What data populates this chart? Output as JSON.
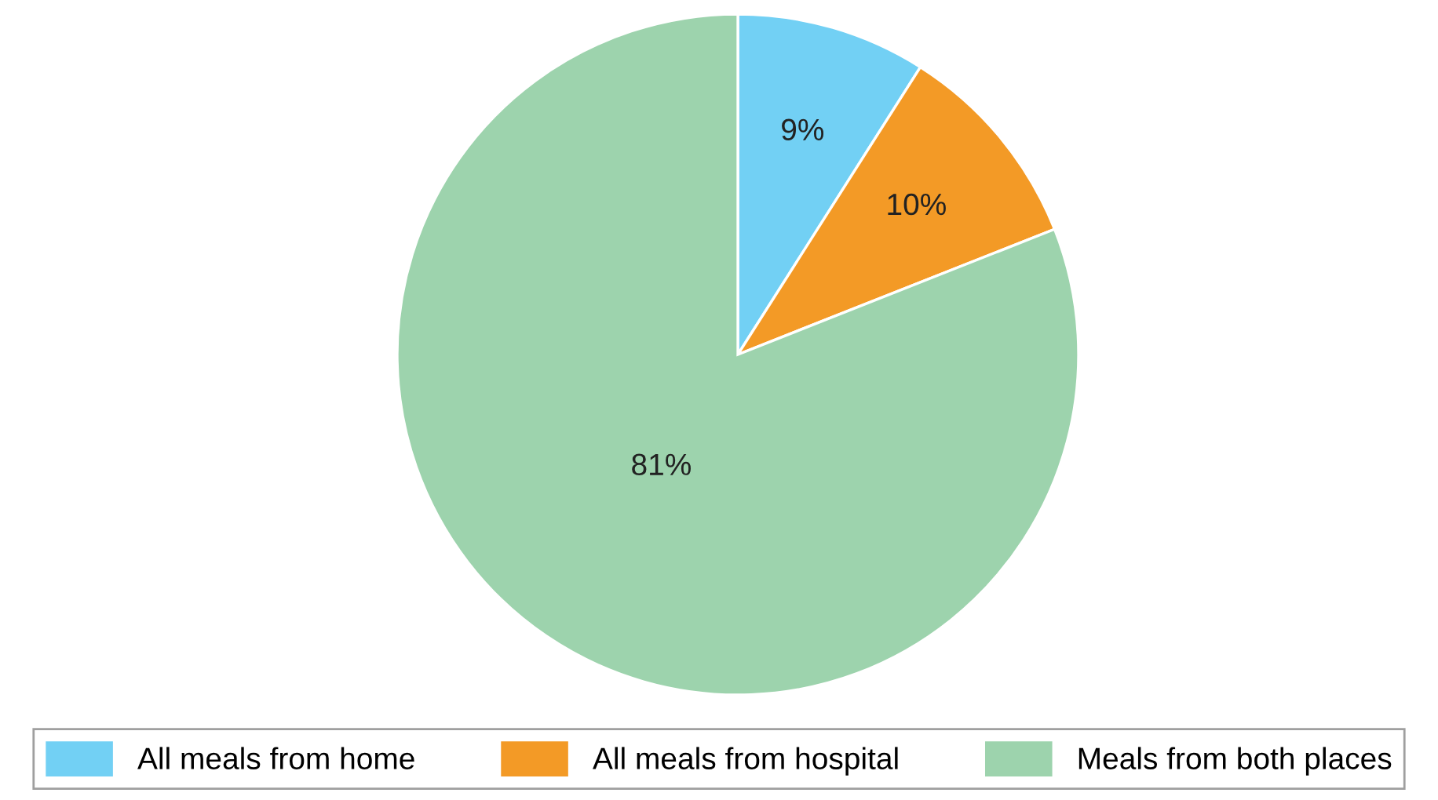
{
  "chart_data": {
    "type": "pie",
    "categories": [
      "All meals from home",
      "All meals from hospital",
      "Meals from both places"
    ],
    "values": [
      9,
      10,
      81
    ],
    "colors": [
      "#72d0f4",
      "#f39a26",
      "#9dd3ad"
    ],
    "value_labels": [
      "9%",
      "10%",
      "81%"
    ],
    "legend": "bottom"
  }
}
